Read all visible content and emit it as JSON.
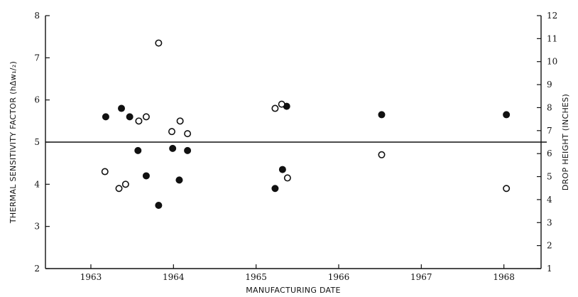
{
  "chart_data": {
    "type": "scatter",
    "xlabel": "MANUFACTURING DATE",
    "ylabel_left": "THERMAL SENSITIVITY FACTOR (hΔw₁/₂)",
    "ylabel_right": "DROP HEIGHT (INCHES)",
    "xlim": [
      1962.45,
      1968.45
    ],
    "ylim_left": [
      2,
      8
    ],
    "ylim_right": [
      1,
      12
    ],
    "x_ticks": [
      "1963",
      "1964",
      "1965",
      "1966",
      "1967",
      "1968"
    ],
    "left_ticks": [
      "2",
      "3",
      "4",
      "5",
      "6",
      "7",
      "8"
    ],
    "right_ticks": [
      "1",
      "2",
      "3",
      "4",
      "5",
      "6",
      "7",
      "8",
      "9",
      "10",
      "11",
      "12"
    ],
    "reference_line_y": 5.0,
    "grid": false,
    "marker_legend": "none",
    "series": [
      {
        "marker": "filled-circle",
        "points": [
          [
            1963.18,
            5.6
          ],
          [
            1963.37,
            5.8
          ],
          [
            1963.47,
            5.6
          ],
          [
            1963.57,
            4.8
          ],
          [
            1963.67,
            4.2
          ],
          [
            1963.82,
            3.5
          ],
          [
            1963.99,
            4.85
          ],
          [
            1964.07,
            4.1
          ],
          [
            1964.17,
            4.8
          ],
          [
            1965.23,
            3.9
          ],
          [
            1965.32,
            4.35
          ],
          [
            1965.37,
            5.85
          ],
          [
            1966.52,
            5.65
          ],
          [
            1968.03,
            5.65
          ]
        ]
      },
      {
        "marker": "open-circle",
        "points": [
          [
            1963.17,
            4.3
          ],
          [
            1963.34,
            3.9
          ],
          [
            1963.42,
            4.0
          ],
          [
            1963.58,
            5.5
          ],
          [
            1963.67,
            5.6
          ],
          [
            1963.82,
            7.35
          ],
          [
            1963.98,
            5.25
          ],
          [
            1964.08,
            5.5
          ],
          [
            1964.17,
            5.2
          ],
          [
            1965.23,
            5.8
          ],
          [
            1965.31,
            5.9
          ],
          [
            1965.38,
            4.15
          ],
          [
            1966.52,
            4.7
          ],
          [
            1968.03,
            3.9
          ]
        ]
      }
    ]
  }
}
